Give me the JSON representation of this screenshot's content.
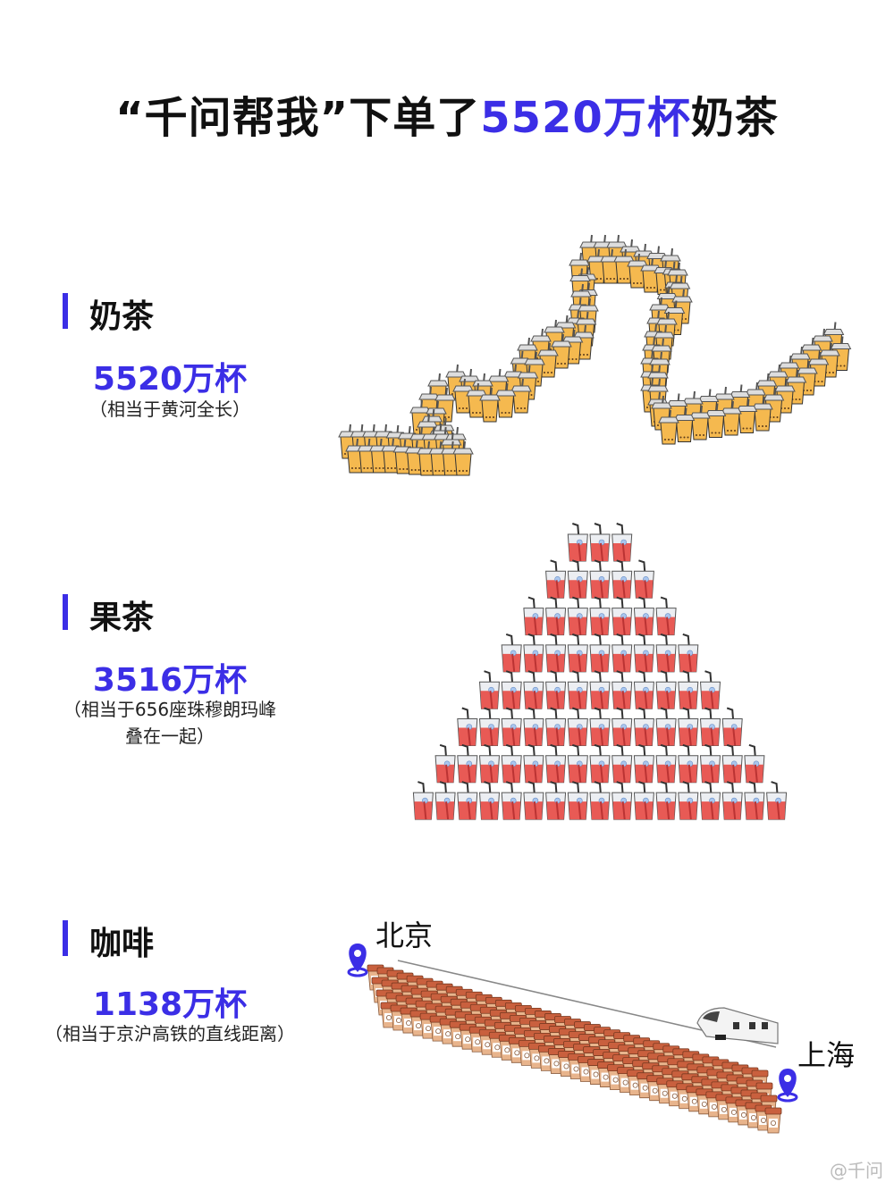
{
  "title": {
    "prefix": "“千问帮我”下单了",
    "highlight": "5520万杯",
    "suffix": "奶茶"
  },
  "sections": [
    {
      "name": "奶茶",
      "count": "5520万杯",
      "note": "（相当于黄河全长）",
      "note2": ""
    },
    {
      "name": "果茶",
      "count": "3516万杯",
      "note": "（相当于656座珠穆朗玛峰",
      "note2": "叠在一起）"
    },
    {
      "name": "咖啡",
      "count": "1138万杯",
      "note": "（相当于京沪高铁的直线距离）",
      "note2": ""
    }
  ],
  "map": {
    "start": "北京",
    "end": "上海",
    "pin_icon": "location-pin-icon",
    "vehicle_icon": "high-speed-train-icon"
  },
  "watermark": "@千问",
  "colors": {
    "accent": "#3b2ee6",
    "milk_tea": "#f5b94f",
    "fruit_tea": "#e85a55",
    "coffee": "#c9603e"
  }
}
